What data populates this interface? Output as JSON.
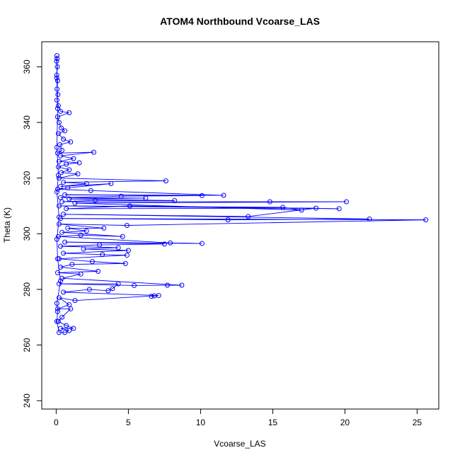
{
  "chart_data": {
    "type": "line",
    "title": "ATOM4 Northbound Vcoarse_LAS",
    "xlabel": "Vcoarse_LAS",
    "ylabel": "Theta (K)",
    "xlim": [
      -1,
      26.5
    ],
    "ylim": [
      237,
      369
    ],
    "xticks": [
      0,
      5,
      10,
      15,
      20,
      25
    ],
    "yticks": [
      240,
      260,
      280,
      300,
      320,
      340,
      360
    ],
    "grid": false,
    "legend": "none",
    "series": [
      {
        "color": "#0000ff",
        "marker": "open-circle",
        "lines": true,
        "points": [
          [
            0.05,
            364
          ],
          [
            0.03,
            362
          ],
          [
            0.08,
            360
          ],
          [
            0.04,
            357
          ],
          [
            0.1,
            355
          ],
          [
            0.06,
            352
          ],
          [
            0.12,
            350
          ],
          [
            0.05,
            348
          ],
          [
            0.15,
            346
          ],
          [
            0.3,
            344
          ],
          [
            0.9,
            343.5
          ],
          [
            0.1,
            342
          ],
          [
            0.2,
            340
          ],
          [
            0.35,
            338
          ],
          [
            0.6,
            337
          ],
          [
            0.15,
            336
          ],
          [
            0.5,
            334
          ],
          [
            1.0,
            333
          ],
          [
            0.25,
            332
          ],
          [
            0.4,
            330
          ],
          [
            0.1,
            329
          ],
          [
            2.6,
            329.3
          ],
          [
            0.3,
            328
          ],
          [
            1.2,
            327
          ],
          [
            0.2,
            326
          ],
          [
            1.6,
            325.5
          ],
          [
            0.7,
            325
          ],
          [
            0.15,
            324
          ],
          [
            0.9,
            323
          ],
          [
            0.35,
            322
          ],
          [
            1.5,
            321.5
          ],
          [
            0.2,
            320
          ],
          [
            7.6,
            319
          ],
          [
            0.5,
            318.5
          ],
          [
            2.1,
            318
          ],
          [
            0.3,
            317
          ],
          [
            3.8,
            318
          ],
          [
            0.8,
            316.5
          ],
          [
            0.1,
            316
          ],
          [
            2.4,
            315.5
          ],
          [
            11.6,
            313.8
          ],
          [
            0.6,
            314
          ],
          [
            10.1,
            313.7
          ],
          [
            4.5,
            313.5
          ],
          [
            0.3,
            313
          ],
          [
            6.2,
            312.8
          ],
          [
            0.9,
            312.5
          ],
          [
            8.2,
            311.9
          ],
          [
            2.7,
            312
          ],
          [
            0.4,
            311.5
          ],
          [
            14.8,
            311.5
          ],
          [
            20.1,
            311.5
          ],
          [
            1.3,
            311
          ],
          [
            17.0,
            308.5
          ],
          [
            15.7,
            309.5
          ],
          [
            0.2,
            310
          ],
          [
            19.6,
            309
          ],
          [
            5.1,
            310
          ],
          [
            0.7,
            309
          ],
          [
            18.0,
            309.2
          ],
          [
            13.3,
            306.2
          ],
          [
            0.5,
            307
          ],
          [
            21.7,
            305.3
          ],
          [
            11.9,
            305
          ],
          [
            0.3,
            305.5
          ],
          [
            25.6,
            305
          ],
          [
            4.9,
            303
          ],
          [
            0.2,
            303.5
          ],
          [
            3.3,
            302
          ],
          [
            0.8,
            302
          ],
          [
            2.1,
            301
          ],
          [
            0.4,
            300.5
          ],
          [
            4.6,
            299
          ],
          [
            1.7,
            299.5
          ],
          [
            0.15,
            299
          ],
          [
            7.9,
            296.7
          ],
          [
            10.1,
            296.5
          ],
          [
            0.6,
            297
          ],
          [
            7.5,
            296.3
          ],
          [
            3.0,
            296
          ],
          [
            0.3,
            295.5
          ],
          [
            4.3,
            295
          ],
          [
            1.9,
            294.5
          ],
          [
            5.0,
            294
          ],
          [
            0.5,
            293
          ],
          [
            3.2,
            292.5
          ],
          [
            4.9,
            292.3
          ],
          [
            0.2,
            291
          ],
          [
            2.5,
            290
          ],
          [
            4.8,
            289.3
          ],
          [
            1.1,
            289
          ],
          [
            0.3,
            288
          ],
          [
            2.9,
            286.5
          ],
          [
            0.1,
            286
          ],
          [
            1.7,
            285.5
          ],
          [
            0.4,
            284
          ],
          [
            8.7,
            281.5
          ],
          [
            7.7,
            281.5
          ],
          [
            5.4,
            281.4
          ],
          [
            0.2,
            282
          ],
          [
            4.3,
            282
          ],
          [
            3.9,
            280.3
          ],
          [
            3.6,
            279.5
          ],
          [
            2.3,
            280
          ],
          [
            0.5,
            279
          ],
          [
            7.1,
            277.8
          ],
          [
            6.6,
            277.5
          ],
          [
            6.8,
            277.7
          ],
          [
            1.3,
            276
          ],
          [
            0.2,
            277
          ],
          [
            0.9,
            274.5
          ],
          [
            0.1,
            273
          ],
          [
            1.0,
            273
          ],
          [
            0.4,
            270
          ],
          [
            0.15,
            268.5
          ],
          [
            0.7,
            267
          ],
          [
            1.2,
            266
          ],
          [
            0.3,
            266
          ],
          [
            0.9,
            265.2
          ],
          [
            0.6,
            264.5
          ],
          [
            0.2,
            264.5
          ],
          [
            0.05,
            268.5
          ],
          [
            0.1,
            272
          ],
          [
            0.05,
            275
          ],
          [
            0.3,
            283
          ],
          [
            0.1,
            291
          ],
          [
            0.05,
            298
          ],
          [
            0.2,
            306
          ],
          [
            0.05,
            315
          ],
          [
            0.15,
            321
          ],
          [
            0.05,
            331
          ],
          [
            0.1,
            345
          ],
          [
            0.04,
            356
          ],
          [
            0.06,
            363
          ]
        ]
      }
    ]
  }
}
